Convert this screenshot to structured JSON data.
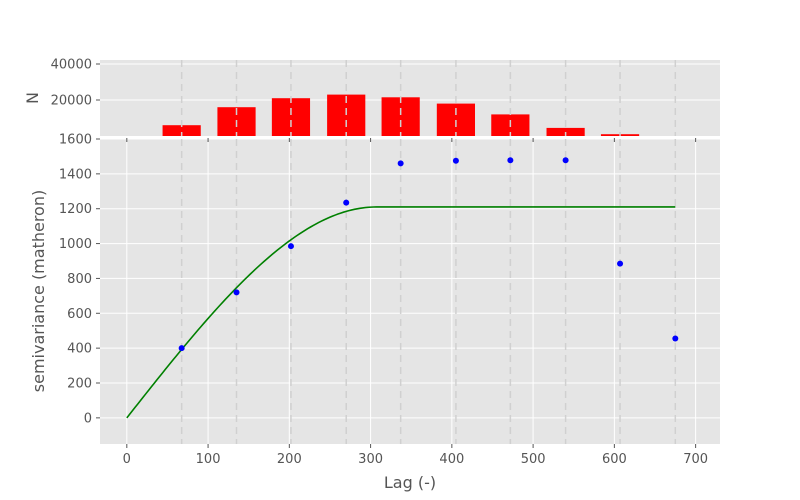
{
  "chart_data": [
    {
      "type": "bar",
      "ylabel": "N",
      "ylim": [
        0,
        40000
      ],
      "y_ticks": [
        40000,
        20000
      ],
      "y_tick_labels": [
        "40000",
        "20000"
      ],
      "bar_color": "#ff0000",
      "bars": [
        {
          "x": 67.5,
          "value": 6000
        },
        {
          "x": 135,
          "value": 16000
        },
        {
          "x": 202,
          "value": 21000
        },
        {
          "x": 270,
          "value": 23000
        },
        {
          "x": 337,
          "value": 21500
        },
        {
          "x": 405,
          "value": 18000
        },
        {
          "x": 472,
          "value": 12000
        },
        {
          "x": 540,
          "value": 4500
        },
        {
          "x": 607,
          "value": 1000
        },
        {
          "x": 675,
          "value": 0
        }
      ],
      "bar_width": 47,
      "grid": true
    },
    {
      "type": "scatter",
      "xlabel": "Lag (-)",
      "ylabel": "semivariance (matheron)",
      "xlim": [
        -33,
        730
      ],
      "ylim": [
        -150,
        1600
      ],
      "x_ticks": [
        0,
        100,
        200,
        300,
        400,
        500,
        600,
        700
      ],
      "x_tick_labels": [
        "0",
        "100",
        "200",
        "300",
        "400",
        "500",
        "600",
        "700"
      ],
      "y_ticks": [
        0,
        200,
        400,
        600,
        800,
        1000,
        1200,
        1400,
        1600
      ],
      "y_tick_labels": [
        "0",
        "200",
        "400",
        "600",
        "800",
        "1000",
        "1200",
        "1400",
        "1600"
      ],
      "bin_edges": [
        67.5,
        135,
        202,
        270,
        337,
        405,
        472,
        540,
        607,
        675
      ],
      "points_color": "#0000ff",
      "points": [
        {
          "x": 67.5,
          "y": 400
        },
        {
          "x": 135,
          "y": 720
        },
        {
          "x": 202,
          "y": 985
        },
        {
          "x": 270,
          "y": 1235
        },
        {
          "x": 337,
          "y": 1460
        },
        {
          "x": 405,
          "y": 1475
        },
        {
          "x": 472,
          "y": 1478
        },
        {
          "x": 540,
          "y": 1478
        },
        {
          "x": 607,
          "y": 885
        },
        {
          "x": 675,
          "y": 455
        }
      ],
      "model_color": "#008000",
      "model": {
        "kind": "spherical",
        "range": 307,
        "sill": 1210,
        "nugget": 0,
        "x_max": 675
      },
      "grid": true
    }
  ]
}
